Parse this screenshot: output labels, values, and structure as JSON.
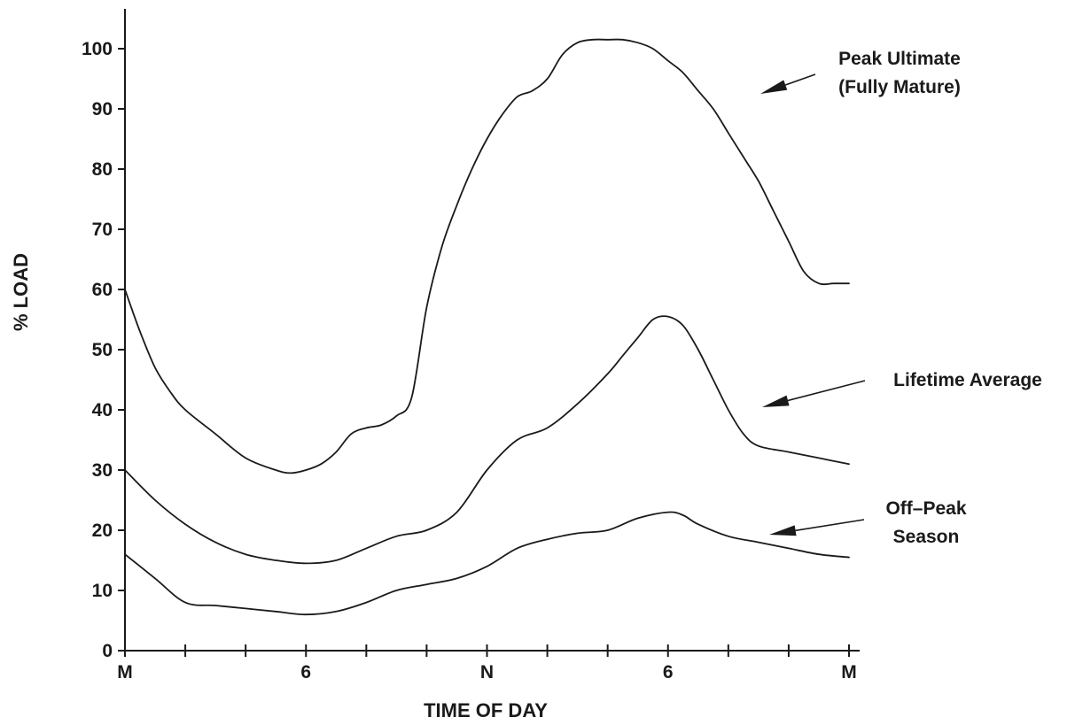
{
  "chart_data": {
    "type": "line",
    "title": "",
    "xlabel": "TIME OF DAY",
    "ylabel": "% LOAD",
    "x_unit": "hours after midnight",
    "xlim": [
      0,
      24
    ],
    "ylim": [
      0,
      100
    ],
    "xticks": [
      0,
      2,
      4,
      6,
      8,
      10,
      12,
      14,
      16,
      18,
      20,
      22,
      24
    ],
    "x_tick_labels": [
      {
        "x": 0,
        "label": "M"
      },
      {
        "x": 6,
        "label": "6"
      },
      {
        "x": 12,
        "label": "N"
      },
      {
        "x": 18,
        "label": "6"
      },
      {
        "x": 24,
        "label": "M"
      }
    ],
    "yticks": [
      0,
      10,
      20,
      30,
      40,
      50,
      60,
      70,
      80,
      90,
      100
    ],
    "grid": false,
    "legend": "none",
    "series": [
      {
        "name": "Peak Ultimate (Fully Mature)",
        "x": [
          0,
          0.5,
          1,
          1.5,
          2,
          3,
          4,
          5,
          5.5,
          6,
          6.5,
          7,
          7.5,
          8,
          8.5,
          9,
          9.5,
          10,
          10.5,
          11,
          11.5,
          12,
          12.5,
          13,
          13.5,
          14,
          14.5,
          15,
          15.5,
          16,
          16.5,
          17,
          17.5,
          18,
          18.5,
          19,
          19.5,
          20,
          20.5,
          21,
          21.5,
          22,
          22.5,
          23,
          23.5,
          24
        ],
        "values": [
          60,
          53,
          47,
          43,
          40,
          36,
          32,
          30,
          29.5,
          30,
          31,
          33,
          36,
          37,
          37.5,
          39,
          42,
          57,
          67,
          74,
          80,
          85,
          89,
          92,
          93,
          95,
          99,
          101,
          101.5,
          101.5,
          101.5,
          101,
          100,
          98,
          96,
          93,
          90,
          86,
          82,
          78,
          73,
          68,
          63,
          61,
          61,
          61
        ]
      },
      {
        "name": "Lifetime Average",
        "x": [
          0,
          1,
          2,
          3,
          4,
          5,
          6,
          7,
          8,
          9,
          10,
          11,
          12,
          13,
          14,
          15,
          16,
          16.5,
          17,
          17.5,
          18,
          18.5,
          19,
          19.5,
          20,
          20.5,
          21,
          22,
          23,
          24
        ],
        "values": [
          30,
          25,
          21,
          18,
          16,
          15,
          14.5,
          15,
          17,
          19,
          20,
          23,
          30,
          35,
          37,
          41,
          46,
          49,
          52,
          55,
          55.5,
          54,
          50,
          45,
          40,
          36,
          34,
          33,
          32,
          31
        ]
      },
      {
        "name": "Off-Peak Season",
        "x": [
          0,
          1,
          2,
          3,
          4,
          5,
          6,
          7,
          8,
          9,
          10,
          11,
          12,
          13,
          14,
          15,
          16,
          17,
          18,
          18.5,
          19,
          20,
          21,
          22,
          23,
          24
        ],
        "values": [
          16,
          12,
          8,
          7.5,
          7,
          6.5,
          6,
          6.5,
          8,
          10,
          11,
          12,
          14,
          17,
          18.5,
          19.5,
          20,
          22,
          23,
          22.5,
          21,
          19,
          18,
          17,
          16,
          15.5
        ]
      }
    ],
    "annotations": [
      {
        "lines": [
          "Peak Ultimate",
          "(Fully Mature)"
        ],
        "series": 0
      },
      {
        "lines": [
          "Lifetime Average"
        ],
        "series": 1
      },
      {
        "lines": [
          "Off–Peak",
          "Season"
        ],
        "series": 2
      }
    ]
  }
}
